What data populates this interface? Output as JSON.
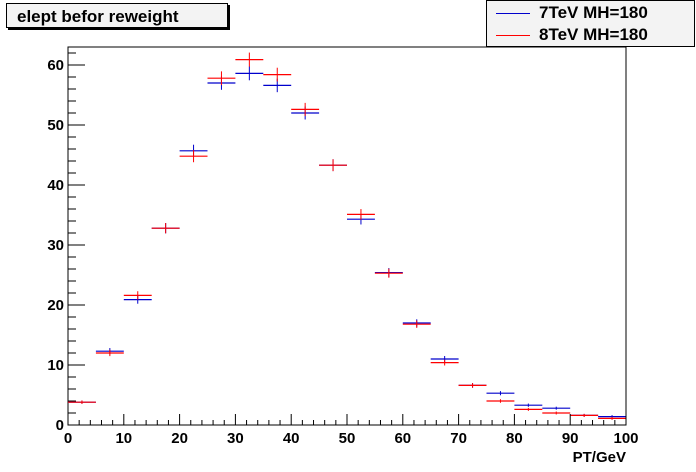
{
  "chart_data": {
    "type": "line",
    "title": "elept befor reweight",
    "xlabel": "PT/GeV",
    "ylabel": "",
    "xlim": [
      0,
      100
    ],
    "ylim": [
      0,
      63
    ],
    "bin_width": 5,
    "x": [
      2.5,
      7.5,
      12.5,
      17.5,
      22.5,
      27.5,
      32.5,
      37.5,
      42.5,
      47.5,
      52.5,
      57.5,
      62.5,
      67.5,
      72.5,
      77.5,
      82.5,
      87.5,
      92.5,
      97.5
    ],
    "xticks": [
      0,
      10,
      20,
      30,
      40,
      50,
      60,
      70,
      80,
      90,
      100
    ],
    "yticks": [
      0,
      10,
      20,
      30,
      40,
      50,
      60
    ],
    "series": [
      {
        "name": "7TeV MH=180",
        "color": "#0000cc",
        "values": [
          3.8,
          12.3,
          20.9,
          32.8,
          45.7,
          57.0,
          58.6,
          56.6,
          52.0,
          43.3,
          34.3,
          25.4,
          17.0,
          11.0,
          6.6,
          5.3,
          3.3,
          2.8,
          1.6,
          1.4
        ]
      },
      {
        "name": "8TeV MH=180",
        "color": "#ff0000",
        "values": [
          3.8,
          12.0,
          21.6,
          32.8,
          44.8,
          57.8,
          60.9,
          58.4,
          52.6,
          43.3,
          35.1,
          25.3,
          16.8,
          10.4,
          6.6,
          4.0,
          2.6,
          2.0,
          1.6,
          1.1
        ]
      }
    ]
  }
}
